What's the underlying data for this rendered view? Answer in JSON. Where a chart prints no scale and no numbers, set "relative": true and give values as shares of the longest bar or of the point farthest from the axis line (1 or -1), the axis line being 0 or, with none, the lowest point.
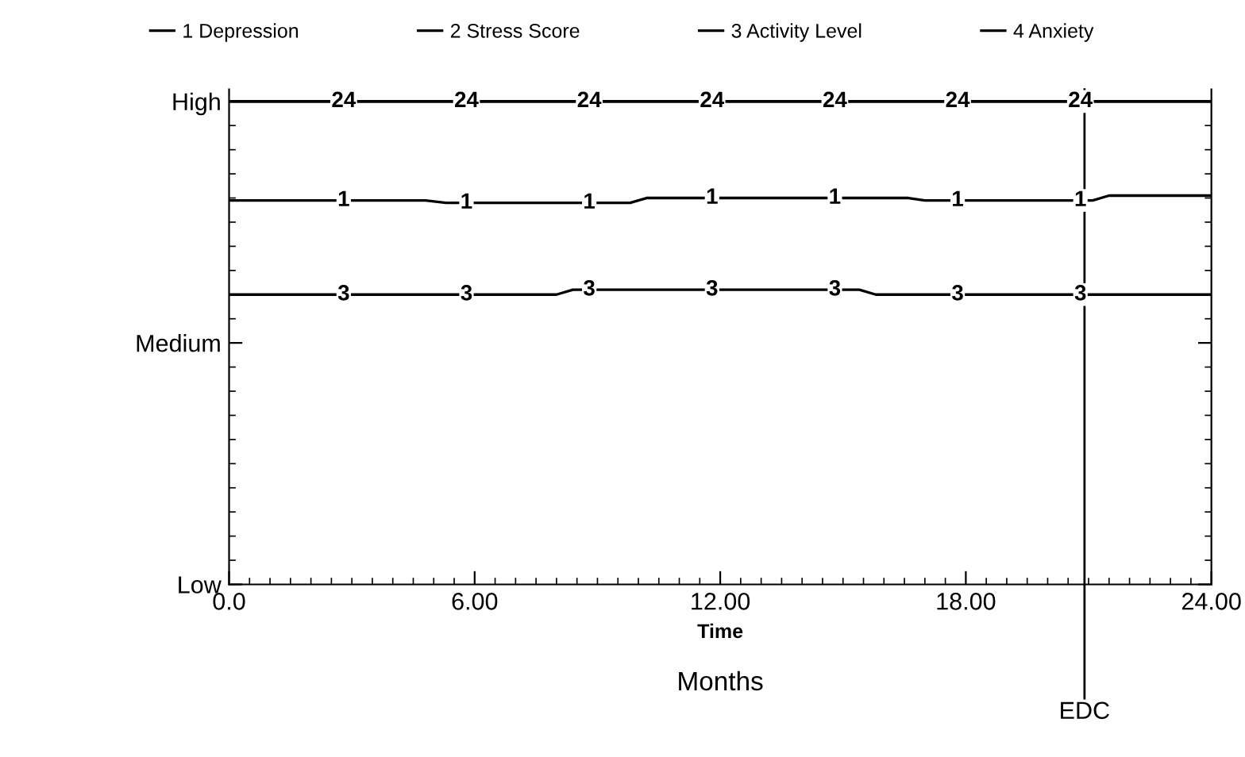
{
  "chart_data": {
    "type": "line",
    "relative": true,
    "xlabel": "Time",
    "legend": "top",
    "grid": false,
    "xlim": [
      0,
      24
    ],
    "xticks": [
      {
        "value": 0,
        "label": "0.0"
      },
      {
        "value": 6,
        "label": "6.00"
      },
      {
        "value": 12,
        "label": "12.00"
      },
      {
        "value": 18,
        "label": "18.00"
      },
      {
        "value": 24,
        "label": "24.00"
      }
    ],
    "series": [
      {
        "name": "1 Depression",
        "color": "#000000",
        "x": [
          0,
          4.8,
          5.3,
          9.8,
          10.2,
          16.6,
          17.0,
          21.1,
          21.5,
          24
        ],
        "values": [
          0.795,
          0.795,
          0.79,
          0.79,
          0.8,
          0.8,
          0.795,
          0.795,
          0.805,
          0.805
        ]
      },
      {
        "name": "2 Stress Score",
        "color": "#000000",
        "x": [
          0,
          24
        ],
        "values": [
          1,
          1
        ]
      },
      {
        "name": "3 Activity Level",
        "color": "#000000",
        "x": [
          0,
          8.0,
          8.4,
          15.4,
          15.8,
          24
        ],
        "values": [
          0.6,
          0.6,
          0.61,
          0.61,
          0.6,
          0.6
        ]
      },
      {
        "name": "4 Anxiety",
        "color": "#000000",
        "x": [
          0,
          24
        ],
        "values": [
          1,
          1
        ]
      }
    ],
    "ref_lines": [
      {
        "axis": "x",
        "value": 20.9,
        "label": "EDC",
        "color": "#000000"
      }
    ],
    "annotations": [
      "Months",
      "High",
      "Medium",
      "Low",
      {
        "text": "24",
        "x": 2.8,
        "y": 1
      },
      {
        "text": "24",
        "x": 5.8,
        "y": 1
      },
      {
        "text": "24",
        "x": 8.8,
        "y": 1
      },
      {
        "text": "24",
        "x": 11.8,
        "y": 1
      },
      {
        "text": "24",
        "x": 14.8,
        "y": 1
      },
      {
        "text": "24",
        "x": 17.8,
        "y": 1
      },
      {
        "text": "24",
        "x": 20.8,
        "y": 1
      },
      {
        "text": "1",
        "x": 2.8,
        "y": 0.795
      },
      {
        "text": "1",
        "x": 5.8,
        "y": 0.79
      },
      {
        "text": "1",
        "x": 8.8,
        "y": 0.79
      },
      {
        "text": "1",
        "x": 11.8,
        "y": 0.8
      },
      {
        "text": "1",
        "x": 14.8,
        "y": 0.8
      },
      {
        "text": "1",
        "x": 17.8,
        "y": 0.795
      },
      {
        "text": "1",
        "x": 20.8,
        "y": 0.795
      },
      {
        "text": "3",
        "x": 2.8,
        "y": 0.6
      },
      {
        "text": "3",
        "x": 5.8,
        "y": 0.6
      },
      {
        "text": "3",
        "x": 8.8,
        "y": 0.61
      },
      {
        "text": "3",
        "x": 11.8,
        "y": 0.61
      },
      {
        "text": "3",
        "x": 14.8,
        "y": 0.61
      },
      {
        "text": "3",
        "x": 17.8,
        "y": 0.6
      },
      {
        "text": "3",
        "x": 20.8,
        "y": 0.6
      }
    ]
  }
}
